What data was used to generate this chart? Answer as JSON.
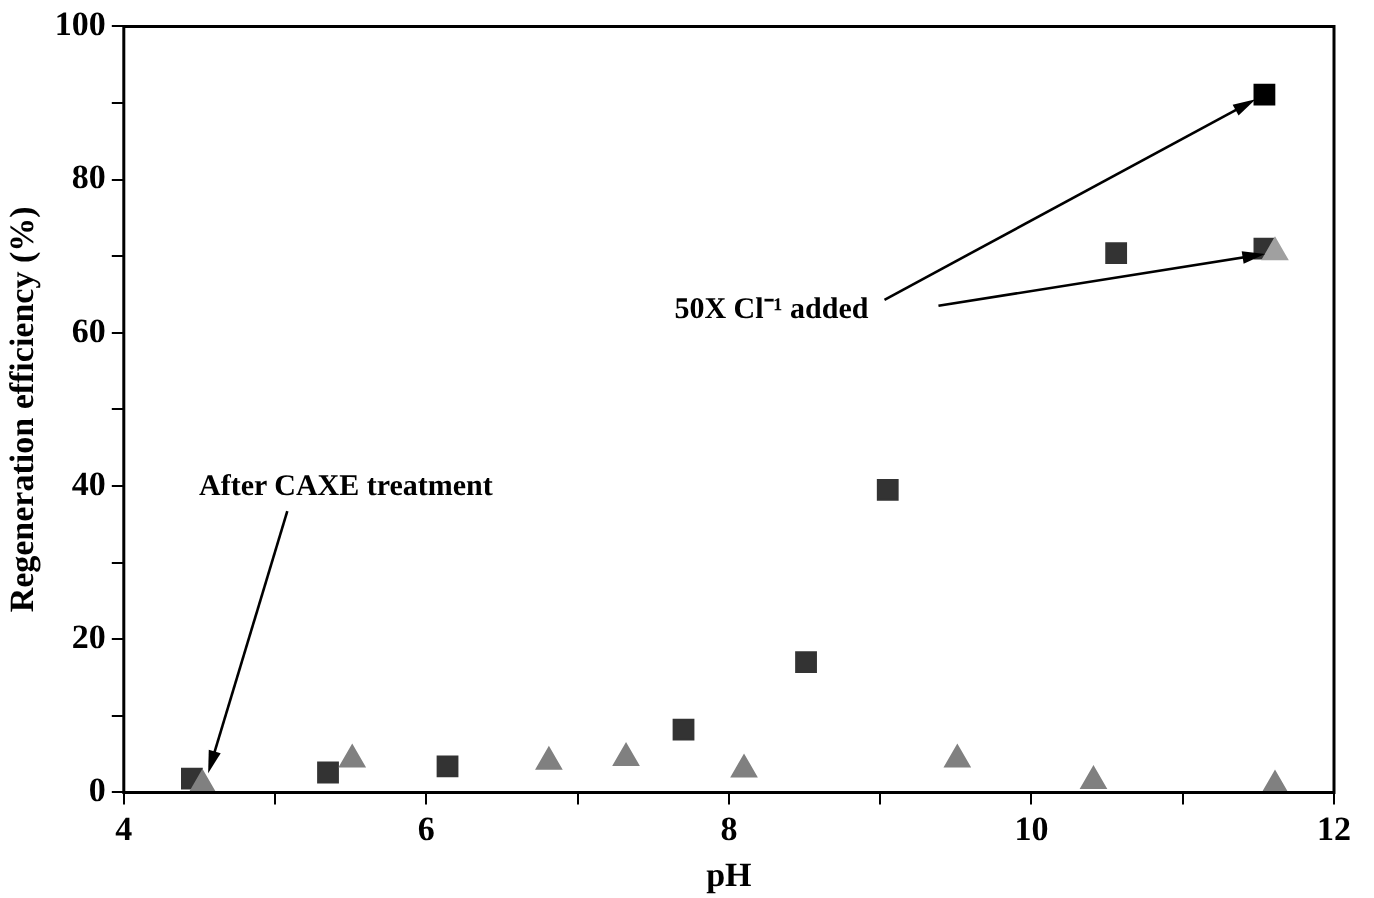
{
  "chart_data": {
    "type": "scatter",
    "xlabel": "pH",
    "ylabel": "Regeneration efficiency (%)",
    "xlim": [
      4,
      12
    ],
    "xticks": [
      4,
      {
        "value": 5,
        "label": null
      },
      6,
      {
        "value": 7,
        "label": null
      },
      8,
      {
        "value": 9,
        "label": null
      },
      10,
      {
        "value": 11,
        "label": null
      },
      12
    ],
    "ylim": [
      0,
      100
    ],
    "yticks": [
      0,
      {
        "value": 10,
        "label": null
      },
      20,
      {
        "value": 30,
        "label": null
      },
      40,
      {
        "value": 50,
        "label": null
      },
      60,
      {
        "value": 70,
        "label": null
      },
      80,
      {
        "value": 90,
        "label": null
      },
      100
    ],
    "grid": false,
    "legend": false,
    "series": [
      {
        "color": "#333333",
        "marker": "square",
        "x": [
          4.45,
          5.35,
          6.14,
          7.7,
          8.51,
          9.05,
          10.56,
          11.54
        ],
        "values": [
          1.8,
          2.6,
          3.4,
          8.2,
          17,
          39.5,
          70.4,
          71
        ]
      },
      {
        "color": "#808080",
        "marker": "triangle",
        "x": [
          4.52,
          5.51,
          6.81,
          7.32,
          8.1,
          9.51,
          10.41,
          11.61
        ],
        "values": [
          1,
          4.3,
          4,
          4.5,
          3,
          4.3,
          1.5,
          0.9
        ]
      },
      {
        "color": "#000000",
        "marker": "square",
        "x": [
          11.54
        ],
        "values": [
          91.1
        ]
      },
      {
        "color": "#a0a0a0",
        "marker": "triangle",
        "x": [
          11.61
        ],
        "values": [
          70.5
        ]
      }
    ],
    "annotations": [
      {
        "text": "After CAXE treatment",
        "x": 4.55,
        "y": 2
      },
      {
        "text": "50X Cl⁻¹ added",
        "x": 11.54,
        "y": 91.1
      }
    ]
  }
}
